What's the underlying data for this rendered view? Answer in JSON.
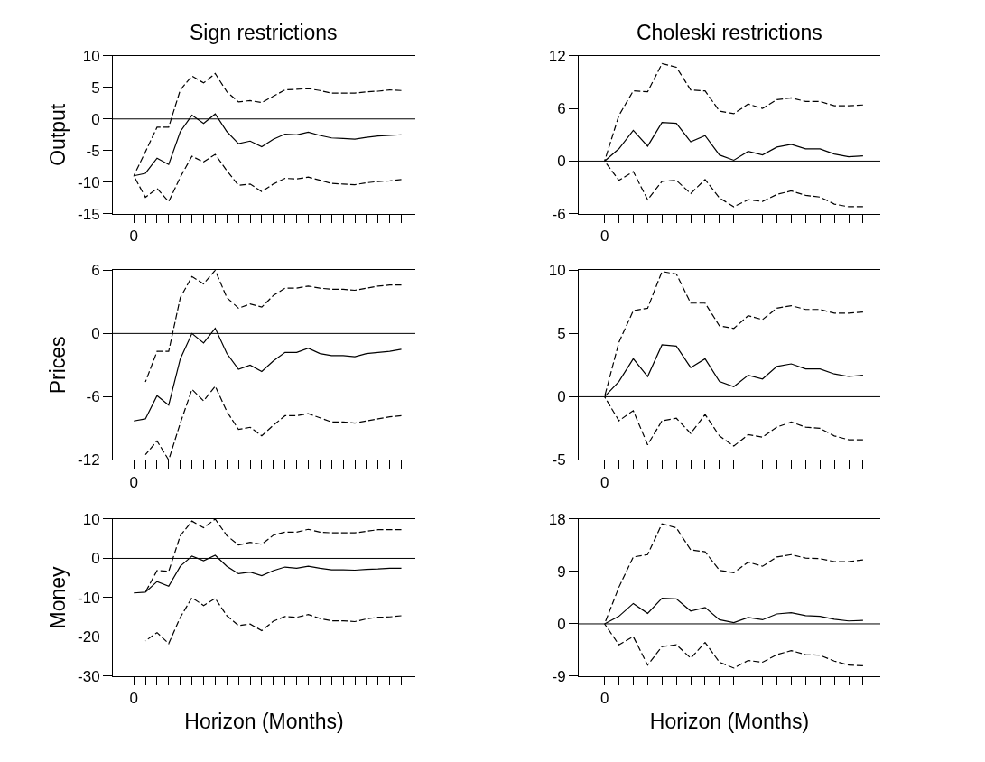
{
  "chart_data": [
    {
      "type": "line",
      "title": "Sign restrictions",
      "ylabel": "Output",
      "categories": [
        "0",
        null,
        null,
        null,
        null,
        null,
        null,
        null,
        null,
        null,
        null,
        null,
        null,
        null,
        null,
        null,
        null,
        null,
        null,
        null,
        null,
        null,
        null,
        null
      ],
      "ylim": [
        -15,
        10
      ],
      "yticks": [
        -15,
        -10,
        -5,
        0,
        5,
        10
      ],
      "ref_lines": [
        {
          "axis": "y",
          "value": 0,
          "color": "#000000"
        }
      ],
      "series": [
        {
          "color": "#000000",
          "line_style": "solid",
          "values": [
            -9.0,
            -8.6,
            -6.2,
            -7.2,
            -2.0,
            0.6,
            -0.7,
            0.8,
            -2.0,
            -3.9,
            -3.5,
            -4.4,
            -3.2,
            -2.4,
            -2.5,
            -2.1,
            -2.6,
            -3.0,
            -3.1,
            -3.2,
            -2.9,
            -2.7,
            -2.6,
            -2.5
          ]
        },
        {
          "color": "#000000",
          "line_style": "dashed",
          "values": [
            -9.0,
            -5.2,
            -1.3,
            -1.3,
            4.6,
            6.8,
            5.7,
            7.2,
            4.3,
            2.7,
            2.9,
            2.6,
            3.6,
            4.6,
            4.7,
            4.8,
            4.5,
            4.1,
            4.1,
            4.1,
            4.3,
            4.4,
            4.6,
            4.5
          ]
        },
        {
          "color": "#000000",
          "line_style": "dashed",
          "values": [
            -9.0,
            -12.4,
            -11.0,
            -13.1,
            -9.2,
            -5.9,
            -6.8,
            -5.6,
            -8.2,
            -10.5,
            -10.3,
            -11.5,
            -10.3,
            -9.4,
            -9.5,
            -9.2,
            -9.7,
            -10.2,
            -10.3,
            -10.4,
            -10.1,
            -9.9,
            -9.8,
            -9.6
          ]
        }
      ]
    },
    {
      "type": "line",
      "title": "Choleski restrictions",
      "categories": [
        "0",
        null,
        null,
        null,
        null,
        null,
        null,
        null,
        null,
        null,
        null,
        null,
        null,
        null,
        null,
        null,
        null,
        null,
        null
      ],
      "ylim": [
        -6,
        12
      ],
      "yticks": [
        -6,
        0,
        6,
        12
      ],
      "ref_lines": [
        {
          "axis": "y",
          "value": 0,
          "color": "#000000"
        }
      ],
      "series": [
        {
          "color": "#000000",
          "line_style": "solid",
          "values": [
            0,
            1.4,
            3.5,
            1.7,
            4.4,
            4.3,
            2.2,
            2.9,
            0.7,
            0.1,
            1.1,
            0.7,
            1.6,
            1.9,
            1.4,
            1.4,
            0.8,
            0.5,
            0.6
          ]
        },
        {
          "color": "#000000",
          "line_style": "dashed",
          "values": [
            0,
            5.2,
            8.0,
            7.9,
            11.1,
            10.7,
            8.1,
            8.0,
            5.7,
            5.4,
            6.5,
            6.0,
            7.0,
            7.2,
            6.8,
            6.8,
            6.3,
            6.3,
            6.4
          ]
        },
        {
          "color": "#000000",
          "line_style": "dashed",
          "values": [
            0,
            -2.2,
            -1.2,
            -4.4,
            -2.3,
            -2.2,
            -3.7,
            -2.1,
            -4.2,
            -5.2,
            -4.4,
            -4.6,
            -3.8,
            -3.4,
            -3.9,
            -4.1,
            -4.9,
            -5.2,
            -5.2
          ]
        }
      ]
    },
    {
      "type": "line",
      "ylabel": "Prices",
      "categories": [
        "0",
        null,
        null,
        null,
        null,
        null,
        null,
        null,
        null,
        null,
        null,
        null,
        null,
        null,
        null,
        null,
        null,
        null,
        null,
        null,
        null,
        null,
        null,
        null
      ],
      "ylim": [
        -12,
        6
      ],
      "yticks": [
        -12,
        -6,
        0,
        6
      ],
      "ref_lines": [
        {
          "axis": "y",
          "value": 0,
          "color": "#000000"
        }
      ],
      "series": [
        {
          "color": "#000000",
          "line_style": "solid",
          "values": [
            -8.3,
            -8.1,
            -5.9,
            -6.8,
            -2.4,
            0.0,
            -0.9,
            0.5,
            -1.9,
            -3.4,
            -3.0,
            -3.6,
            -2.6,
            -1.8,
            -1.8,
            -1.4,
            -1.9,
            -2.1,
            -2.1,
            -2.2,
            -1.9,
            -1.8,
            -1.7,
            -1.5
          ]
        },
        {
          "color": "#000000",
          "line_style": "dashed",
          "values": [
            null,
            -4.6,
            -1.7,
            -1.7,
            3.4,
            5.4,
            4.7,
            6.0,
            3.4,
            2.4,
            2.8,
            2.5,
            3.6,
            4.3,
            4.3,
            4.5,
            4.3,
            4.2,
            4.2,
            4.1,
            4.3,
            4.5,
            4.6,
            4.6
          ]
        },
        {
          "color": "#000000",
          "line_style": "dashed",
          "values": [
            null,
            -11.5,
            -10.2,
            -12.0,
            -8.5,
            -5.3,
            -6.4,
            -5.0,
            -7.4,
            -9.1,
            -8.9,
            -9.7,
            -8.7,
            -7.8,
            -7.8,
            -7.6,
            -8.0,
            -8.4,
            -8.4,
            -8.5,
            -8.3,
            -8.1,
            -7.9,
            -7.8
          ]
        }
      ]
    },
    {
      "type": "line",
      "categories": [
        "0",
        null,
        null,
        null,
        null,
        null,
        null,
        null,
        null,
        null,
        null,
        null,
        null,
        null,
        null,
        null,
        null,
        null,
        null
      ],
      "ylim": [
        -5,
        10
      ],
      "yticks": [
        -5,
        0,
        5,
        10
      ],
      "ref_lines": [
        {
          "axis": "y",
          "value": 0,
          "color": "#000000"
        }
      ],
      "series": [
        {
          "color": "#000000",
          "line_style": "solid",
          "values": [
            0,
            1.2,
            3.0,
            1.6,
            4.1,
            4.0,
            2.3,
            3.0,
            1.2,
            0.8,
            1.7,
            1.4,
            2.4,
            2.6,
            2.2,
            2.2,
            1.8,
            1.6,
            1.7
          ]
        },
        {
          "color": "#000000",
          "line_style": "dashed",
          "values": [
            0,
            4.3,
            6.8,
            7.0,
            9.9,
            9.7,
            7.4,
            7.4,
            5.6,
            5.4,
            6.4,
            6.1,
            7.0,
            7.2,
            6.9,
            6.9,
            6.6,
            6.6,
            6.7
          ]
        },
        {
          "color": "#000000",
          "line_style": "dashed",
          "values": [
            0,
            -1.9,
            -1.1,
            -3.8,
            -1.9,
            -1.7,
            -2.9,
            -1.4,
            -3.1,
            -3.9,
            -3.0,
            -3.2,
            -2.4,
            -2.0,
            -2.4,
            -2.5,
            -3.1,
            -3.4,
            -3.4
          ]
        }
      ]
    },
    {
      "type": "line",
      "ylabel": "Money",
      "xlabel": "Horizon (Months)",
      "categories": [
        "0",
        null,
        null,
        null,
        null,
        null,
        null,
        null,
        null,
        null,
        null,
        null,
        null,
        null,
        null,
        null,
        null,
        null,
        null,
        null,
        null,
        null,
        null,
        null
      ],
      "ylim": [
        -30,
        10
      ],
      "yticks": [
        -30,
        -20,
        -10,
        0,
        10
      ],
      "ref_lines": [
        {
          "axis": "y",
          "value": 0,
          "color": "#000000"
        }
      ],
      "series": [
        {
          "color": "#000000",
          "line_style": "solid",
          "values": [
            -8.8,
            -8.6,
            -5.9,
            -7.1,
            -2.0,
            0.6,
            -0.6,
            0.8,
            -2.0,
            -3.9,
            -3.5,
            -4.4,
            -3.1,
            -2.2,
            -2.5,
            -2.0,
            -2.5,
            -2.9,
            -2.9,
            -3.0,
            -2.8,
            -2.7,
            -2.5,
            -2.5
          ]
        },
        {
          "color": "#000000",
          "line_style": "dashed",
          "values": [
            null,
            -8.6,
            -3.1,
            -3.3,
            5.8,
            9.5,
            7.8,
            10.0,
            5.8,
            3.4,
            4.1,
            3.6,
            5.9,
            6.7,
            6.7,
            7.4,
            6.7,
            6.5,
            6.5,
            6.5,
            6.9,
            7.3,
            7.3,
            7.3
          ]
        },
        {
          "color": "#000000",
          "line_style": "dashed",
          "values": [
            null,
            -21.0,
            -18.9,
            -21.7,
            -15.0,
            -10.0,
            -12.0,
            -10.2,
            -14.6,
            -17.1,
            -16.7,
            -18.4,
            -16.0,
            -14.8,
            -15.0,
            -14.3,
            -15.3,
            -15.9,
            -15.9,
            -16.1,
            -15.4,
            -15.0,
            -14.9,
            -14.6
          ]
        }
      ]
    },
    {
      "type": "line",
      "xlabel": "Horizon (Months)",
      "categories": [
        "0",
        null,
        null,
        null,
        null,
        null,
        null,
        null,
        null,
        null,
        null,
        null,
        null,
        null,
        null,
        null,
        null,
        null,
        null
      ],
      "ylim": [
        -9,
        18
      ],
      "yticks": [
        -9,
        0,
        9,
        18
      ],
      "ref_lines": [
        {
          "axis": "y",
          "value": 0,
          "color": "#000000"
        }
      ],
      "series": [
        {
          "color": "#000000",
          "line_style": "solid",
          "values": [
            0,
            1.3,
            3.5,
            1.8,
            4.4,
            4.3,
            2.2,
            2.8,
            0.7,
            0.2,
            1.1,
            0.7,
            1.7,
            1.9,
            1.4,
            1.3,
            0.8,
            0.5,
            0.6
          ]
        },
        {
          "color": "#000000",
          "line_style": "dashed",
          "values": [
            0,
            6.3,
            11.5,
            11.9,
            17.2,
            16.5,
            12.7,
            12.4,
            9.2,
            8.8,
            10.6,
            9.9,
            11.5,
            11.9,
            11.3,
            11.2,
            10.7,
            10.7,
            11.0
          ]
        },
        {
          "color": "#000000",
          "line_style": "dashed",
          "values": [
            0,
            -3.6,
            -2.2,
            -7.1,
            -3.9,
            -3.6,
            -5.9,
            -3.2,
            -6.6,
            -7.6,
            -6.3,
            -6.6,
            -5.3,
            -4.6,
            -5.3,
            -5.4,
            -6.4,
            -7.1,
            -7.2
          ]
        }
      ]
    }
  ]
}
